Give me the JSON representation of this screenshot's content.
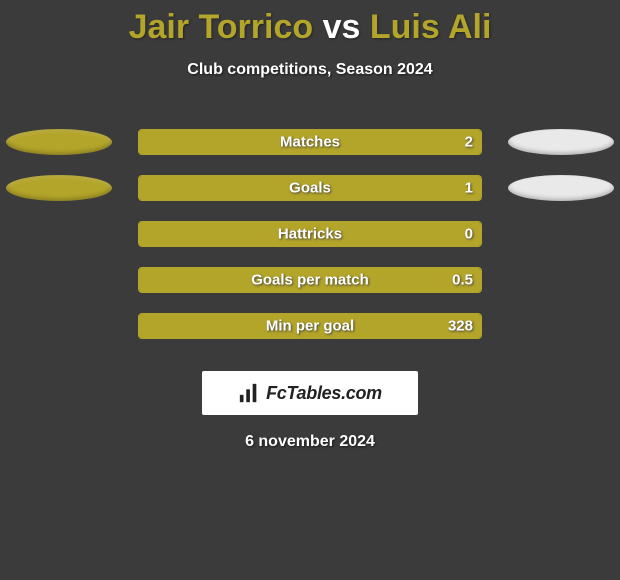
{
  "background_color": "#3b3b3b",
  "title": {
    "player1": "Jair Torrico",
    "vs": "vs",
    "player2": "Luis Ali",
    "color_player1": "#b3a42a",
    "color_player2": "#b3a42a",
    "fontsize": 34
  },
  "subtitle": "Club competitions, Season 2024",
  "player1_color": "#b3a42a",
  "player2_color": "#e9e9e9",
  "ellipse_width": 106,
  "ellipse_height": 26,
  "bar_track_width": 344,
  "bar_track_height": 26,
  "bar_border_color": "#b3a42a",
  "stats": [
    {
      "label": "Matches",
      "left_val": "",
      "right_val": "2",
      "left_pct": 0,
      "right_pct": 100,
      "show_left_ellipse": true,
      "show_right_ellipse": true
    },
    {
      "label": "Goals",
      "left_val": "",
      "right_val": "1",
      "left_pct": 0,
      "right_pct": 100,
      "show_left_ellipse": true,
      "show_right_ellipse": true
    },
    {
      "label": "Hattricks",
      "left_val": "",
      "right_val": "0",
      "left_pct": 0,
      "right_pct": 100,
      "show_left_ellipse": false,
      "show_right_ellipse": false
    },
    {
      "label": "Goals per match",
      "left_val": "",
      "right_val": "0.5",
      "left_pct": 0,
      "right_pct": 100,
      "show_left_ellipse": false,
      "show_right_ellipse": false
    },
    {
      "label": "Min per goal",
      "left_val": "",
      "right_val": "328",
      "left_pct": 0,
      "right_pct": 100,
      "show_left_ellipse": false,
      "show_right_ellipse": false
    }
  ],
  "brand": {
    "text": "FcTables.com",
    "icon_name": "bar-chart-icon",
    "icon_color": "#222222",
    "bg": "#ffffff"
  },
  "date": "6 november 2024"
}
